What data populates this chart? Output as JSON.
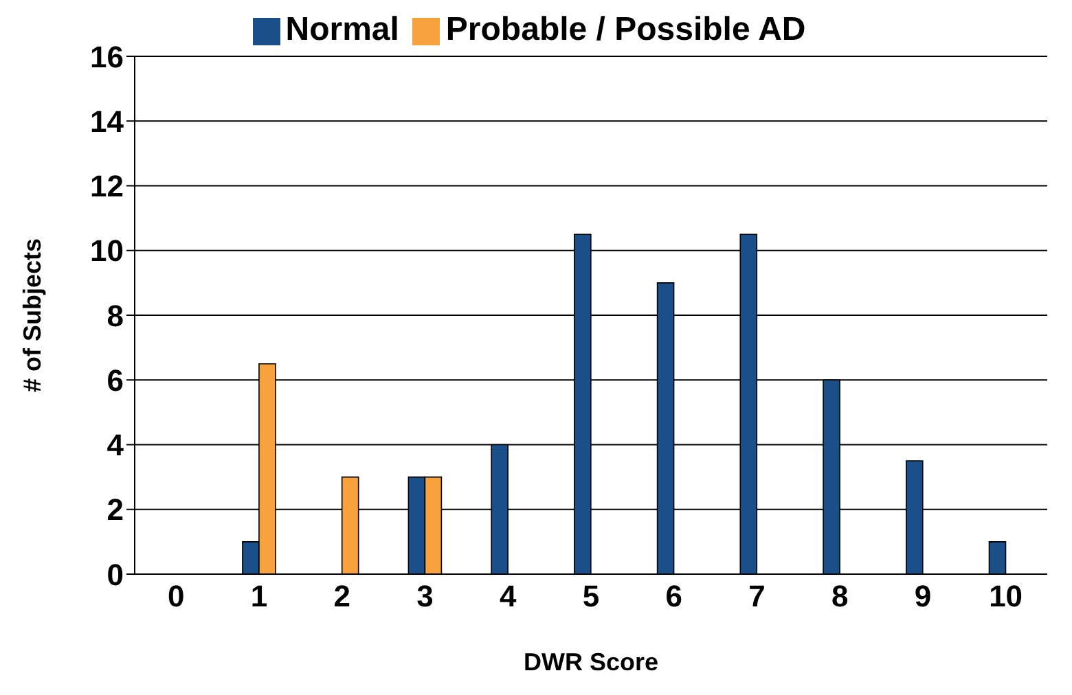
{
  "chart_data": {
    "type": "bar",
    "xlabel": "DWR Score",
    "ylabel": "# of Subjects",
    "categories": [
      "0",
      "1",
      "2",
      "3",
      "4",
      "5",
      "6",
      "7",
      "8",
      "9",
      "10"
    ],
    "series": [
      {
        "name": "Normal",
        "color": "#1b4f8a",
        "values": [
          0,
          1,
          0,
          3,
          4,
          10.5,
          9,
          10.5,
          6,
          3.5,
          1
        ]
      },
      {
        "name": "Probable / Possible AD",
        "color": "#f7a23c",
        "values": [
          0,
          6.5,
          3,
          3,
          0,
          0,
          0,
          0,
          0,
          0,
          0
        ]
      }
    ],
    "ylim": [
      0,
      16
    ],
    "yticks": [
      0,
      2,
      4,
      6,
      8,
      10,
      12,
      14,
      16
    ],
    "grid": "y",
    "legend": "top"
  }
}
